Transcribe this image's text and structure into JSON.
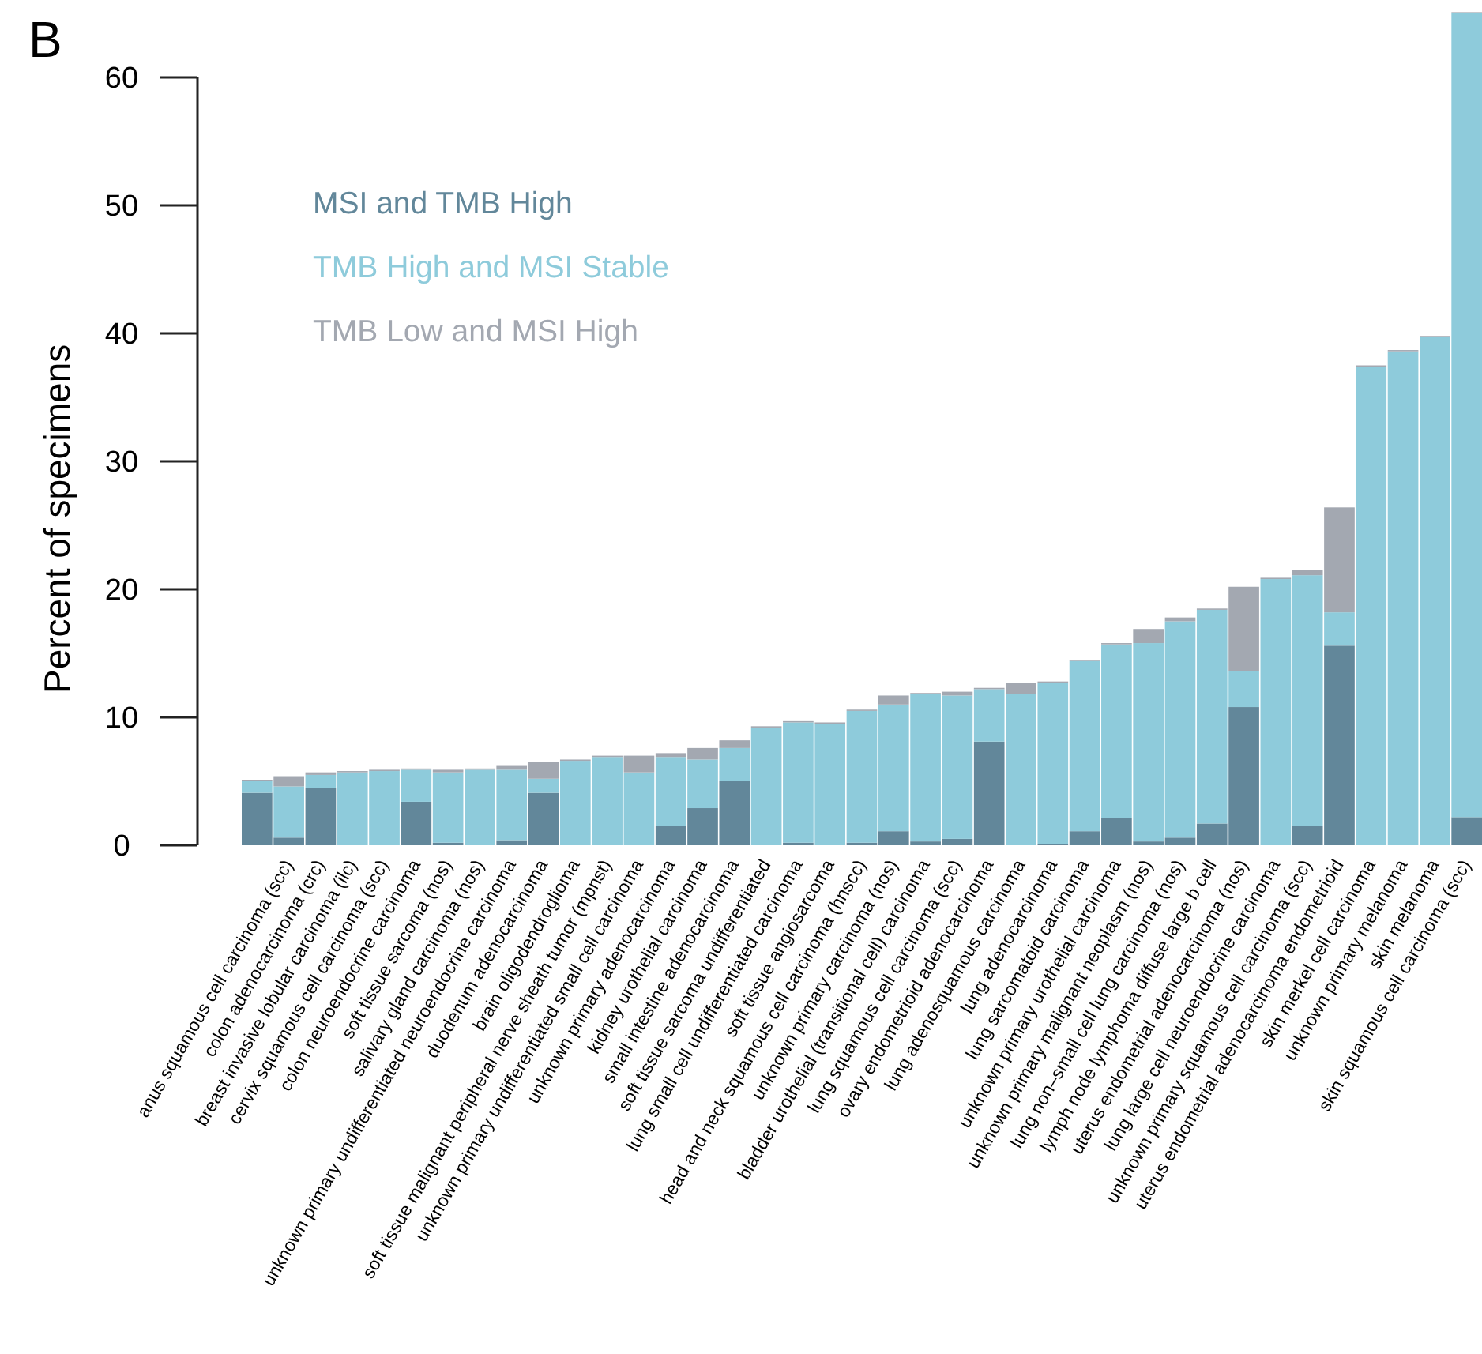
{
  "chart_data": {
    "type": "bar",
    "title": "B",
    "ylabel": "Percent of specimens",
    "stacked": true,
    "legend": "top left",
    "grid": false,
    "categories": [
      null,
      "anus squamous cell carcinoma (scc)",
      "colon adenocarcinoma (crc)",
      "breast invasive lobular carcinoma (ilc)",
      "cervix squamous cell carcinoma (scc)",
      "colon neuroendocrine carcinoma",
      "soft tissue sarcoma (nos)",
      "salivary gland carcinoma (nos)",
      "unknown primary undifferentiated neuroendocrine carcinoma",
      "duodenum adenocarcinoma",
      "brain oligodendroglioma",
      "soft tissue malignant peripheral nerve sheath tumor (mpnst)",
      "unknown primary undifferentiated small cell carcinoma",
      "unknown primary adenocarcinoma",
      "kidney urothelial carcinoma",
      "small intestine adenocarcinoma",
      "soft tissue sarcoma undifferentiated",
      "lung small cell undifferentiated carcinoma",
      "soft tissue angiosarcoma",
      "head and neck squamous cell carcinoma (hnscc)",
      "unknown primary carcinoma (nos)",
      "bladder urothelial (transitional cell) carcinoma",
      "lung squamous cell carcinoma (scc)",
      "ovary endometrioid adenocarcinoma",
      "lung adenosquamous carcinoma",
      "lung adenocarcinoma",
      "lung sarcomatoid carcinoma",
      "unknown primary urothelial carcinoma",
      "unknown primary malignant neoplasm (nos)",
      "lung non–small cell lung carcinoma (nos)",
      "lymph node lymphoma diffuse large b cell",
      "uterus endometrial adenocarcinoma (nos)",
      "lung large cell neuroendocrine carcinoma",
      "unknown primary squamous cell carcinoma (scc)",
      "uterus endometrial adenocarcinoma endometrioid",
      "skin merkel cell carcinoma",
      "unknown primary melanoma",
      "skin melanoma",
      "skin squamous cell carcinoma (scc)"
    ],
    "series": [
      {
        "name": "MSI and TMB High",
        "color": "#62879a",
        "values": [
          4.1,
          0.6,
          4.5,
          0,
          0,
          3.4,
          0.2,
          0,
          0.4,
          4.1,
          0,
          0,
          0,
          1.5,
          2.9,
          5.0,
          0,
          0.2,
          0,
          0.2,
          1.1,
          0.3,
          0.5,
          8.1,
          0,
          0.1,
          1.1,
          2.1,
          0.3,
          0.6,
          1.7,
          10.8,
          0,
          1.5,
          15.6,
          0,
          0,
          0,
          2.2
        ]
      },
      {
        "name": "TMB High and MSI Stable",
        "color": "#8ecbdb",
        "values": [
          0.9,
          4.0,
          1.0,
          5.7,
          5.8,
          2.5,
          5.5,
          5.9,
          5.5,
          1.1,
          6.6,
          6.9,
          5.7,
          5.4,
          3.8,
          2.6,
          9.2,
          9.4,
          9.5,
          10.3,
          9.9,
          11.5,
          11.2,
          4.1,
          11.8,
          12.6,
          13.3,
          13.6,
          15.5,
          16.9,
          16.7,
          2.8,
          20.8,
          19.6,
          2.6,
          37.4,
          38.6,
          39.7,
          62.8
        ]
      },
      {
        "name": "TMB Low and MSI High",
        "color": "#a3a8b1",
        "values": [
          0.1,
          0.8,
          0.2,
          0.1,
          0.1,
          0.1,
          0.2,
          0.1,
          0.3,
          1.3,
          0.1,
          0.1,
          1.3,
          0.3,
          0.9,
          0.6,
          0.1,
          0.1,
          0.1,
          0.1,
          0.7,
          0.1,
          0.3,
          0.1,
          0.9,
          0.1,
          0.1,
          0.1,
          1.1,
          0.3,
          0.1,
          6.6,
          0.1,
          0.4,
          8.2,
          0.1,
          0.1,
          0.1,
          0.1
        ]
      }
    ],
    "ylim": [
      0,
      65
    ],
    "yticks": [
      0,
      10,
      20,
      30,
      40,
      50,
      60
    ]
  }
}
